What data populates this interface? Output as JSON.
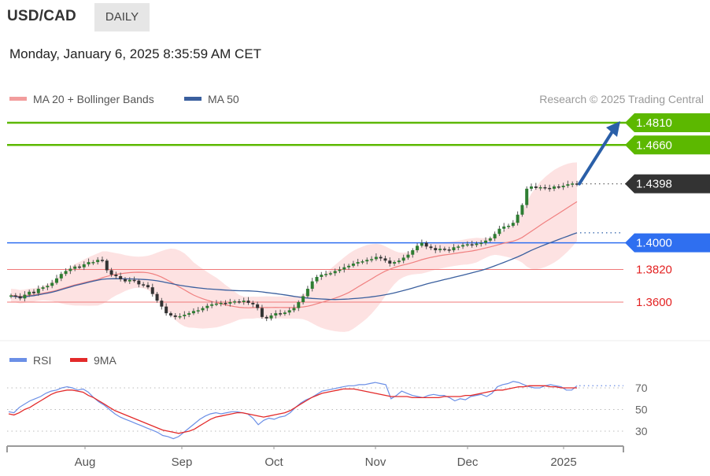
{
  "header": {
    "symbol": "USD/CAD",
    "timeframe": "DAILY",
    "datetime": "Monday, January 6, 2025 8:35:59 AM CET"
  },
  "legend": {
    "bollinger_label": "MA 20 + Bollinger Bands",
    "ma50_label": "MA 50",
    "credit": "Research © 2025 Trading Central",
    "rsi_label": "RSI",
    "rsi_ma_label": "9MA"
  },
  "colors": {
    "green": "#5cb800",
    "blue_level": "#2f6ff0",
    "red_level": "#f07878",
    "bollinger_fill": "#fcd8d8",
    "ma20": "#f08080",
    "ma50": "#3a5f9e",
    "candle": "#2a6e1e",
    "arrow": "#2a5fa8",
    "last_price_badge": "#333333",
    "rsi": "#6b8fe6",
    "rsi_ma": "#e32a2a"
  },
  "chart_data": {
    "type": "candlestick",
    "instrument": "USD/CAD",
    "timeframe": "DAILY",
    "x_tick_labels": [
      "Aug",
      "Sep",
      "Oct",
      "Nov",
      "Dec",
      "2025"
    ],
    "ylim": [
      1.3455,
      1.4895
    ],
    "closes": [
      1.3645,
      1.364,
      1.3625,
      1.365,
      1.367,
      1.366,
      1.369,
      1.37,
      1.371,
      1.373,
      1.376,
      1.379,
      1.381,
      1.3825,
      1.384,
      1.3835,
      1.3855,
      1.387,
      1.387,
      1.3885,
      1.388,
      1.3815,
      1.3785,
      1.3775,
      1.3755,
      1.374,
      1.375,
      1.3745,
      1.372,
      1.3715,
      1.37,
      1.3655,
      1.361,
      1.357,
      1.3525,
      1.351,
      1.35,
      1.3505,
      1.3515,
      1.3525,
      1.354,
      1.3545,
      1.356,
      1.3575,
      1.3585,
      1.359,
      1.3595,
      1.359,
      1.36,
      1.3605,
      1.36,
      1.361,
      1.3595,
      1.3585,
      1.356,
      1.35,
      1.349,
      1.351,
      1.3525,
      1.352,
      1.353,
      1.3545,
      1.356,
      1.36,
      1.364,
      1.369,
      1.374,
      1.377,
      1.3785,
      1.379,
      1.3795,
      1.381,
      1.382,
      1.3835,
      1.3845,
      1.386,
      1.387,
      1.3875,
      1.3885,
      1.389,
      1.3905,
      1.3895,
      1.388,
      1.386,
      1.387,
      1.388,
      1.39,
      1.392,
      1.395,
      1.398,
      1.4,
      1.3975,
      1.3965,
      1.395,
      1.396,
      1.3955,
      1.395,
      1.397,
      1.3975,
      1.3985,
      1.399,
      1.3985,
      1.3995,
      1.4,
      1.4015,
      1.403,
      1.406,
      1.4095,
      1.411,
      1.4115,
      1.4135,
      1.419,
      1.4255,
      1.4365,
      1.438,
      1.437,
      1.4375,
      1.437,
      1.4365,
      1.438,
      1.4375,
      1.4385,
      1.4395,
      1.44,
      1.4398
    ],
    "levels": [
      {
        "value": 1.481,
        "label": "1.4810",
        "type": "resistance"
      },
      {
        "value": 1.466,
        "label": "1.4660",
        "type": "resistance"
      },
      {
        "value": 1.4398,
        "label": "1.4398",
        "type": "last price"
      },
      {
        "value": 1.4,
        "label": "1.4000",
        "type": "pivot"
      },
      {
        "value": 1.382,
        "label": "1.3820",
        "type": "support"
      },
      {
        "value": 1.36,
        "label": "1.3600",
        "type": "support"
      }
    ],
    "projection": {
      "from": 1.4398,
      "to": 1.481,
      "direction": "up"
    },
    "series": [
      {
        "name": "MA 20 + Bollinger Bands",
        "type": "band"
      },
      {
        "name": "MA 50",
        "type": "line",
        "last_value": 1.412
      }
    ],
    "rsi": {
      "labels": [
        "RSI",
        "9MA"
      ],
      "y_tick_labels": [
        "70",
        "50",
        "30"
      ],
      "ticks": [
        70,
        50,
        30
      ],
      "ylim": [
        15,
        85
      ],
      "values": [
        48,
        47,
        52,
        55,
        58,
        60,
        62,
        65,
        67,
        68,
        70,
        71,
        70,
        68,
        69,
        66,
        61,
        57,
        54,
        50,
        46,
        43,
        41,
        39,
        37,
        35,
        33,
        31,
        29,
        26,
        25,
        23,
        25,
        29,
        33,
        37,
        41,
        44,
        46,
        47,
        46,
        47,
        48,
        48,
        47,
        46,
        42,
        36,
        40,
        42,
        41,
        43,
        44,
        47,
        52,
        56,
        59,
        61,
        64,
        67,
        68,
        69,
        70,
        71,
        72,
        72,
        73,
        73,
        74,
        75,
        74,
        73,
        60,
        63,
        67,
        65,
        63,
        62,
        61,
        63,
        64,
        63,
        63,
        61,
        58,
        60,
        59,
        62,
        63,
        64,
        62,
        65,
        71,
        73,
        74,
        76,
        75,
        73,
        71,
        70,
        70,
        72,
        73,
        72,
        71,
        68,
        68,
        72
      ],
      "ma_values": [
        46,
        45,
        47,
        50,
        52,
        55,
        58,
        61,
        64,
        66,
        67,
        68,
        68,
        67,
        66,
        63,
        61,
        58,
        55,
        52,
        49,
        47,
        45,
        43,
        41,
        39,
        37,
        35,
        33,
        31,
        30,
        29,
        28,
        29,
        30,
        32,
        35,
        38,
        41,
        43,
        44,
        45,
        46,
        47,
        47,
        46,
        45,
        44,
        43,
        44,
        45,
        46,
        47,
        49,
        52,
        55,
        58,
        61,
        63,
        65,
        66,
        67,
        68,
        69,
        69,
        69,
        68,
        67,
        66,
        65,
        64,
        63,
        62,
        62,
        62,
        62,
        61,
        61,
        61,
        61,
        61,
        61,
        62,
        62,
        62,
        62,
        63,
        63,
        64,
        65,
        66,
        67,
        68,
        68,
        69,
        70,
        71,
        71,
        72,
        72,
        72,
        72,
        71,
        71,
        70,
        70,
        70,
        70
      ]
    }
  }
}
